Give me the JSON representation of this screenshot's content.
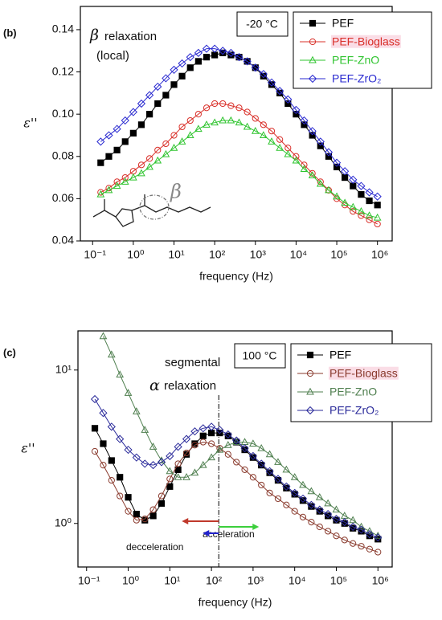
{
  "chart_data": [
    {
      "type": "line",
      "panel_label": "(b)",
      "xlabel": "frequency (Hz)",
      "ylabel": "ε''",
      "xscale": "log",
      "yscale": "linear",
      "xlim": [
        0.05,
        2300000
      ],
      "ylim": [
        0.04,
        0.151
      ],
      "xticks": [
        {
          "value": 0.1,
          "label": "10⁻¹"
        },
        {
          "value": 1,
          "label": "10⁰"
        },
        {
          "value": 10,
          "label": "10¹"
        },
        {
          "value": 100,
          "label": "10²"
        },
        {
          "value": 1000,
          "label": "10³"
        },
        {
          "value": 10000,
          "label": "10⁴"
        },
        {
          "value": 100000,
          "label": "10⁵"
        },
        {
          "value": 1000000,
          "label": "10⁶"
        }
      ],
      "yticks": [
        0.04,
        0.06,
        0.08,
        {
          "value": 0.1,
          "label": "0.10"
        },
        0.12,
        0.14
      ],
      "temperature": "-20 °C",
      "annotations": [
        "β",
        "relaxation",
        "(local)",
        "β"
      ],
      "legend": "upper right",
      "x": [
        0.158,
        0.251,
        0.398,
        0.631,
        1,
        1.58,
        2.51,
        3.98,
        6.31,
        10,
        15.8,
        25.1,
        39.8,
        63.1,
        100,
        158,
        251,
        398,
        631,
        1000,
        1580,
        2510,
        3980,
        6310,
        10000,
        15800,
        25100,
        39800,
        63100,
        100000,
        158000,
        251000,
        398000,
        631000,
        1000000
      ],
      "series": [
        {
          "name": "PEF",
          "color": "#000000",
          "marker": "square",
          "filled": true,
          "values": [
            0.077,
            0.08,
            0.083,
            0.087,
            0.091,
            0.095,
            0.1,
            0.105,
            0.109,
            0.114,
            0.118,
            0.122,
            0.125,
            0.127,
            0.128,
            0.129,
            0.128,
            0.127,
            0.125,
            0.122,
            0.118,
            0.114,
            0.11,
            0.105,
            0.1,
            0.095,
            0.09,
            0.085,
            0.08,
            0.075,
            0.07,
            0.066,
            0.062,
            0.059,
            0.057
          ]
        },
        {
          "name": "PEF-Bioglass",
          "color": "#d9302a",
          "marker": "circle",
          "filled": false,
          "values": [
            0.063,
            0.065,
            0.068,
            0.07,
            0.073,
            0.076,
            0.079,
            0.083,
            0.086,
            0.09,
            0.094,
            0.097,
            0.1,
            0.103,
            0.105,
            0.105,
            0.104,
            0.103,
            0.101,
            0.098,
            0.095,
            0.092,
            0.088,
            0.084,
            0.08,
            0.076,
            0.072,
            0.068,
            0.064,
            0.06,
            0.057,
            0.054,
            0.052,
            0.05,
            0.048
          ]
        },
        {
          "name": "PEF-ZnO",
          "color": "#2fc42f",
          "marker": "triangle",
          "filled": false,
          "values": [
            0.062,
            0.064,
            0.066,
            0.068,
            0.07,
            0.072,
            0.075,
            0.078,
            0.081,
            0.084,
            0.087,
            0.09,
            0.093,
            0.095,
            0.096,
            0.097,
            0.097,
            0.096,
            0.094,
            0.092,
            0.09,
            0.087,
            0.084,
            0.081,
            0.078,
            0.074,
            0.071,
            0.067,
            0.064,
            0.061,
            0.058,
            0.056,
            0.054,
            0.052,
            0.051
          ]
        },
        {
          "name": "PEF-ZrO₂",
          "color": "#2a2ad0",
          "marker": "diamond",
          "filled": false,
          "values": [
            0.087,
            0.09,
            0.093,
            0.097,
            0.101,
            0.105,
            0.109,
            0.113,
            0.117,
            0.121,
            0.124,
            0.127,
            0.129,
            0.131,
            0.131,
            0.13,
            0.129,
            0.127,
            0.125,
            0.122,
            0.119,
            0.115,
            0.111,
            0.107,
            0.102,
            0.097,
            0.092,
            0.087,
            0.082,
            0.077,
            0.073,
            0.069,
            0.066,
            0.063,
            0.061
          ]
        }
      ]
    },
    {
      "type": "line",
      "panel_label": "(c)",
      "xlabel": "frequency (Hz)",
      "ylabel": "ε''",
      "xscale": "log",
      "yscale": "log",
      "xlim": [
        0.062,
        2200000
      ],
      "ylim": [
        0.52,
        18
      ],
      "xticks": [
        {
          "value": 0.1,
          "label": "10⁻¹"
        },
        {
          "value": 1,
          "label": "10⁰"
        },
        {
          "value": 10,
          "label": "10¹"
        },
        {
          "value": 100,
          "label": "10²"
        },
        {
          "value": 1000,
          "label": "10³"
        },
        {
          "value": 10000,
          "label": "10⁴"
        },
        {
          "value": 100000,
          "label": "10⁵"
        },
        {
          "value": 1000000,
          "label": "10⁶"
        }
      ],
      "yticks": [
        {
          "value": 1,
          "label": "10⁰"
        },
        {
          "value": 10,
          "label": "10¹"
        }
      ],
      "temperature": "100 °C",
      "annotations": [
        "segmental",
        "α",
        "relaxation",
        "decceleration",
        "acceleration"
      ],
      "vline": 150,
      "legend": "upper right",
      "x": [
        0.158,
        0.251,
        0.398,
        0.631,
        1,
        1.58,
        2.51,
        3.98,
        6.31,
        10,
        15.8,
        25.1,
        39.8,
        63.1,
        100,
        158,
        251,
        398,
        631,
        1000,
        1580,
        2510,
        3980,
        6310,
        10000,
        15800,
        25100,
        39800,
        63100,
        100000,
        158000,
        251000,
        398000,
        631000,
        1000000
      ],
      "series": [
        {
          "name": "PEF",
          "color": "#000000",
          "marker": "square",
          "filled": true,
          "values": [
            4.17,
            3.31,
            2.57,
            2.0,
            1.48,
            1.15,
            1.05,
            1.12,
            1.35,
            1.74,
            2.24,
            2.82,
            3.31,
            3.72,
            3.89,
            3.89,
            3.72,
            3.39,
            3.02,
            2.69,
            2.4,
            2.14,
            1.91,
            1.7,
            1.55,
            1.41,
            1.29,
            1.2,
            1.12,
            1.05,
            1.0,
            0.93,
            0.89,
            0.83,
            0.79
          ]
        },
        {
          "name": "PEF-Bioglass",
          "color": "#8a3b2e",
          "marker": "circle",
          "filled": false,
          "values": [
            2.95,
            2.4,
            1.91,
            1.51,
            1.2,
            1.05,
            1.07,
            1.23,
            1.51,
            1.95,
            2.45,
            2.88,
            3.24,
            3.39,
            3.31,
            3.09,
            2.82,
            2.51,
            2.24,
            2.0,
            1.78,
            1.58,
            1.45,
            1.32,
            1.2,
            1.1,
            1.02,
            0.95,
            0.89,
            0.83,
            0.78,
            0.74,
            0.71,
            0.68,
            0.65
          ]
        },
        {
          "name": "PEF-ZnO",
          "color": "#4f7f4f",
          "marker": "triangle",
          "filled": false,
          "values": [
            null,
            16.6,
            12.6,
            9.33,
            7.08,
            5.37,
            4.07,
            3.16,
            2.57,
            2.19,
            2.0,
            2.0,
            2.14,
            2.4,
            2.69,
            3.02,
            3.24,
            3.39,
            3.39,
            3.31,
            3.09,
            2.82,
            2.51,
            2.24,
            2.0,
            1.78,
            1.62,
            1.48,
            1.35,
            1.23,
            1.12,
            1.05,
            0.95,
            0.89,
            0.83
          ]
        },
        {
          "name": "PEF-ZrO₂",
          "color": "#2a2a9a",
          "marker": "diamond",
          "filled": false,
          "values": [
            6.46,
            5.25,
            4.27,
            3.55,
            3.02,
            2.69,
            2.45,
            2.4,
            2.51,
            2.75,
            3.16,
            3.55,
            3.98,
            4.17,
            4.27,
            4.07,
            3.8,
            3.47,
            3.09,
            2.75,
            2.45,
            2.19,
            1.95,
            1.74,
            1.58,
            1.45,
            1.32,
            1.23,
            1.15,
            1.07,
            1.02,
            0.95,
            0.91,
            0.85,
            0.81
          ]
        }
      ]
    }
  ]
}
